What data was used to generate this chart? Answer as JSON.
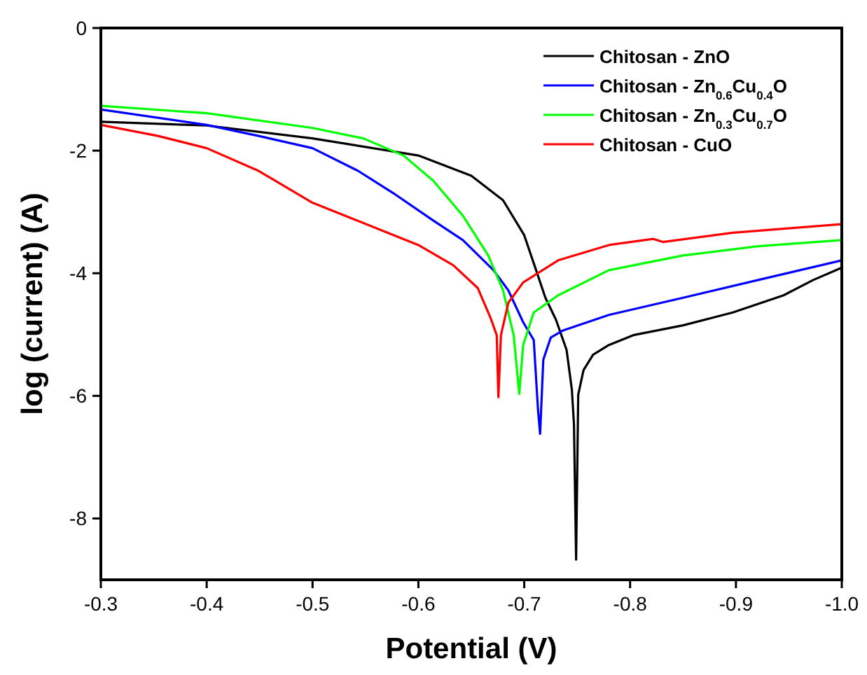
{
  "chart_data": {
    "type": "line",
    "xlabel": "Potential (V)",
    "ylabel": "log (current) (A)",
    "xlim": [
      -0.3,
      -1.0
    ],
    "ylim": [
      -9,
      0
    ],
    "xticks": [
      -0.3,
      -0.4,
      -0.5,
      -0.6,
      -0.7,
      -0.8,
      -0.9,
      {
        "value": -1,
        "label": "-1.0"
      }
    ],
    "yticks": [
      0,
      -2,
      -4,
      -6,
      -8
    ],
    "legend": "top right",
    "grid": false,
    "marker": "none",
    "line_style": "solid",
    "series": [
      {
        "name": "Chitosan - ZnO",
        "color": "#000000",
        "x": [
          -0.3,
          -0.4,
          -0.5,
          -0.6,
          -0.65,
          -0.68,
          -0.7,
          -0.72,
          -0.73,
          -0.74,
          -0.745,
          -0.747,
          -0.749,
          -0.751,
          -0.756,
          -0.765,
          -0.78,
          -0.803,
          -0.85,
          -0.897,
          -0.945,
          -0.973,
          -1.0
        ],
        "values": [
          -1.53,
          -1.59,
          -1.8,
          -2.08,
          -2.41,
          -2.81,
          -3.38,
          -4.4,
          -4.76,
          -5.25,
          -5.9,
          -6.47,
          -8.67,
          -5.98,
          -5.58,
          -5.33,
          -5.17,
          -5.01,
          -4.85,
          -4.64,
          -4.36,
          -4.11,
          -3.91
        ]
      },
      {
        "name": "Chitosan - Zn$_{0.6}$Cu$_{0.4}$O",
        "color": "#0000ff",
        "x": [
          -0.3,
          -0.4,
          -0.449,
          -0.5,
          -0.543,
          -0.576,
          -0.614,
          -0.642,
          -0.671,
          -0.685,
          -0.699,
          -0.709,
          -0.713,
          -0.715,
          -0.718,
          -0.725,
          -0.737,
          -0.78,
          -0.85,
          -0.921,
          -1.0
        ],
        "values": [
          -1.33,
          -1.58,
          -1.76,
          -1.96,
          -2.33,
          -2.69,
          -3.14,
          -3.46,
          -3.95,
          -4.28,
          -4.8,
          -5.09,
          -6.23,
          -6.62,
          -5.41,
          -5.05,
          -4.93,
          -4.68,
          -4.4,
          -4.11,
          -3.79
        ]
      },
      {
        "name": "Chitosan - Zn$_{0.3}$Cu$_{0.7}$O",
        "color": "#00ff00",
        "x": [
          -0.3,
          -0.4,
          -0.5,
          -0.548,
          -0.586,
          -0.614,
          -0.642,
          -0.666,
          -0.68,
          -0.69,
          -0.6925,
          -0.6953,
          -0.699,
          -0.709,
          -0.732,
          -0.78,
          -0.85,
          -0.921,
          -1.0
        ],
        "values": [
          -1.27,
          -1.39,
          -1.63,
          -1.8,
          -2.08,
          -2.49,
          -3.06,
          -3.71,
          -4.28,
          -5.01,
          -5.46,
          -5.97,
          -5.17,
          -4.64,
          -4.36,
          -3.95,
          -3.71,
          -3.56,
          -3.46
        ]
      },
      {
        "name": "Chitosan - CuO",
        "color": "#ff0000",
        "x": [
          -0.3,
          -0.354,
          -0.4,
          -0.449,
          -0.5,
          -0.548,
          -0.6,
          -0.633,
          -0.656,
          -0.668,
          -0.674,
          -0.6756,
          -0.678,
          -0.685,
          -0.699,
          -0.732,
          -0.78,
          -0.822,
          -0.831,
          -0.897,
          -1.0
        ],
        "values": [
          -1.58,
          -1.76,
          -1.96,
          -2.33,
          -2.85,
          -3.18,
          -3.54,
          -3.87,
          -4.24,
          -4.72,
          -5.01,
          -6.02,
          -5.01,
          -4.48,
          -4.15,
          -3.79,
          -3.54,
          -3.44,
          -3.49,
          -3.34,
          -3.2
        ]
      }
    ]
  }
}
